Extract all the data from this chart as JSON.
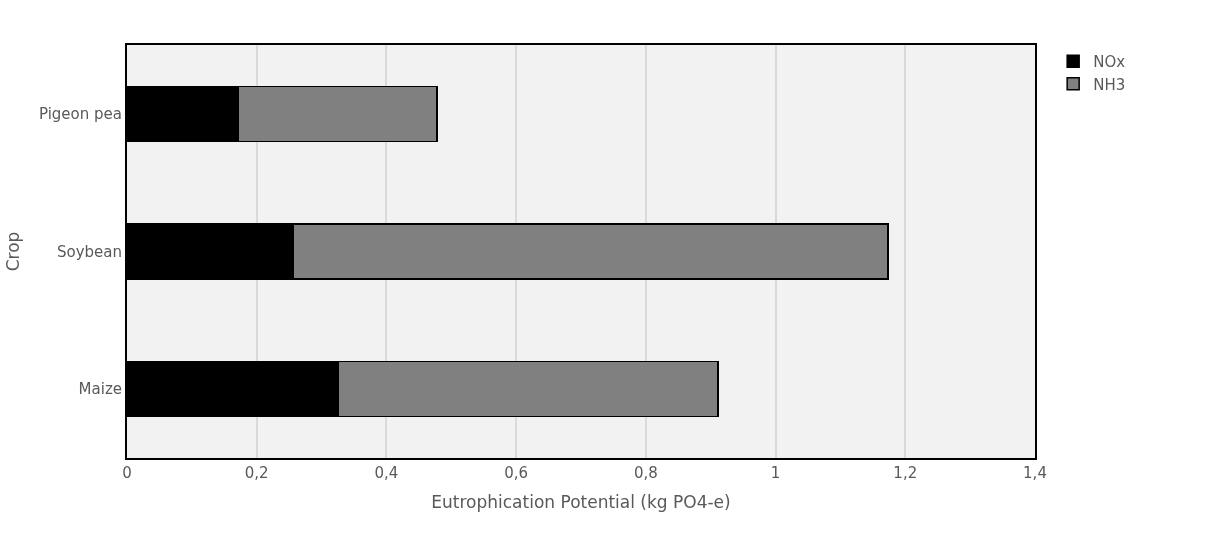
{
  "chart_data": {
    "type": "bar",
    "orientation": "horizontal",
    "stacked": true,
    "xlabel": "Eutrophication Potential (kg PO4-e)",
    "ylabel": "Crop",
    "categories": [
      "Pigeon pea",
      "Soybean",
      "Maize"
    ],
    "series": [
      {
        "name": "NOx",
        "color": "#000000",
        "values": [
          0.171,
          0.257,
          0.326
        ]
      },
      {
        "name": "NH3",
        "color": "#808080",
        "values": [
          0.307,
          0.916,
          0.585
        ]
      }
    ],
    "xlim": [
      0,
      1.4
    ],
    "xticks": [
      0,
      {
        "value": 0.2,
        "label": "0,2"
      },
      {
        "value": 0.4,
        "label": "0,4"
      },
      {
        "value": 0.6,
        "label": "0,6"
      },
      {
        "value": 0.8,
        "label": "0,8"
      },
      1,
      {
        "value": 1.2,
        "label": "1,2"
      },
      {
        "value": 1.4,
        "label": "1,4"
      }
    ],
    "grid": "x",
    "legend": "top right"
  }
}
